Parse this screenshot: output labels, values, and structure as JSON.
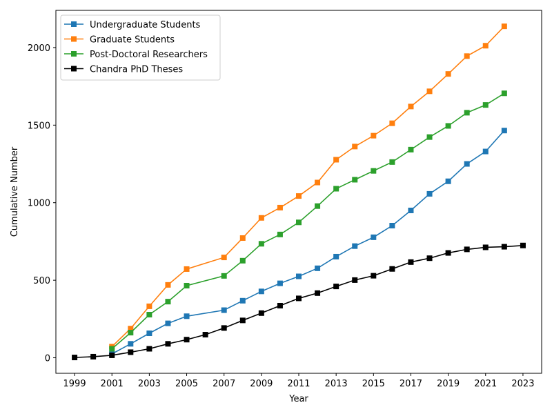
{
  "chart_data": {
    "type": "line",
    "xlabel": "Year",
    "ylabel": "Cumulative Number",
    "xlim": [
      1998,
      2024
    ],
    "ylim": [
      -100,
      2240
    ],
    "x_ticks": [
      1999,
      2001,
      2003,
      2005,
      2007,
      2009,
      2011,
      2013,
      2015,
      2017,
      2019,
      2021,
      2023
    ],
    "y_ticks": [
      0,
      500,
      1000,
      1500,
      2000
    ],
    "legend_position": "top-left",
    "grid": false,
    "series": [
      {
        "name": "Undergraduate Students",
        "color": "#1f77b4",
        "x": [
          2001,
          2002,
          2003,
          2004,
          2005,
          2007,
          2008,
          2009,
          2010,
          2011,
          2012,
          2013,
          2014,
          2015,
          2016,
          2017,
          2018,
          2019,
          2020,
          2021,
          2022
        ],
        "y": [
          25,
          90,
          158,
          222,
          268,
          307,
          368,
          428,
          480,
          525,
          577,
          652,
          720,
          777,
          852,
          950,
          1057,
          1138,
          1250,
          1330,
          1465
        ]
      },
      {
        "name": "Graduate Students",
        "color": "#ff7f0e",
        "x": [
          2001,
          2002,
          2003,
          2004,
          2005,
          2007,
          2008,
          2009,
          2010,
          2011,
          2012,
          2013,
          2014,
          2015,
          2016,
          2017,
          2018,
          2019,
          2020,
          2021,
          2022
        ],
        "y": [
          72,
          188,
          332,
          470,
          572,
          647,
          772,
          902,
          968,
          1043,
          1130,
          1277,
          1362,
          1432,
          1512,
          1620,
          1718,
          1830,
          1945,
          2012,
          2137
        ]
      },
      {
        "name": "Post-Doctoral Researchers",
        "color": "#2ca02c",
        "x": [
          2001,
          2002,
          2003,
          2004,
          2005,
          2007,
          2008,
          2009,
          2010,
          2011,
          2012,
          2013,
          2014,
          2015,
          2016,
          2017,
          2018,
          2019,
          2020,
          2021,
          2022
        ],
        "y": [
          58,
          162,
          278,
          362,
          465,
          528,
          626,
          735,
          795,
          873,
          978,
          1090,
          1148,
          1205,
          1262,
          1342,
          1423,
          1495,
          1580,
          1630,
          1705
        ]
      },
      {
        "name": "Chandra PhD Theses",
        "color": "#000000",
        "x": [
          1999,
          2000,
          2001,
          2002,
          2003,
          2004,
          2005,
          2006,
          2007,
          2008,
          2009,
          2010,
          2011,
          2012,
          2013,
          2014,
          2015,
          2016,
          2017,
          2018,
          2019,
          2020,
          2021,
          2022,
          2023
        ],
        "y": [
          2,
          7,
          16,
          36,
          58,
          90,
          117,
          149,
          192,
          241,
          288,
          336,
          383,
          417,
          460,
          501,
          529,
          573,
          617,
          642,
          676,
          699,
          712,
          716,
          724
        ]
      }
    ]
  }
}
